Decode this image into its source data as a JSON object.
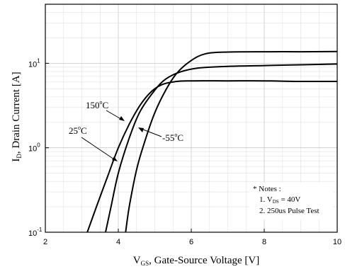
{
  "chart_data": {
    "type": "line",
    "title": "",
    "xlabel": {
      "main": "V",
      "sub": "GS",
      "rest": ", Gate-Source Voltage [V]"
    },
    "ylabel": {
      "main": "I",
      "sub": "D",
      "rest": ", Drain Current [A]"
    },
    "xlim": [
      2,
      10
    ],
    "ylim": [
      0.1,
      50
    ],
    "yscale": "log",
    "grid": true,
    "x_ticks": [
      2,
      4,
      6,
      8,
      10
    ],
    "x_tick_labels": [
      "2",
      "4",
      "6",
      "8",
      "10"
    ],
    "y_ticks": [
      0.1,
      1,
      10
    ],
    "y_tick_labels": [
      {
        "base": "10",
        "exp": "-1"
      },
      {
        "base": "10",
        "exp": "0"
      },
      {
        "base": "10",
        "exp": "1"
      }
    ],
    "series": [
      {
        "name": "150°C",
        "points": [
          [
            3.15,
            0.1
          ],
          [
            3.4,
            0.2
          ],
          [
            3.7,
            0.45
          ],
          [
            4.0,
            1.0
          ],
          [
            4.3,
            1.9
          ],
          [
            4.6,
            3.2
          ],
          [
            4.9,
            4.6
          ],
          [
            5.2,
            5.6
          ],
          [
            5.6,
            6.1
          ],
          [
            6.0,
            6.2
          ],
          [
            7.0,
            6.2
          ],
          [
            8.0,
            6.2
          ],
          [
            9.0,
            6.1
          ],
          [
            10,
            6.1
          ]
        ]
      },
      {
        "name": "25°C",
        "points": [
          [
            3.65,
            0.1
          ],
          [
            3.8,
            0.2
          ],
          [
            4.0,
            0.5
          ],
          [
            4.3,
            1.3
          ],
          [
            4.6,
            2.7
          ],
          [
            5.0,
            4.8
          ],
          [
            5.3,
            6.5
          ],
          [
            5.7,
            7.9
          ],
          [
            6.2,
            8.8
          ],
          [
            7.0,
            9.2
          ],
          [
            8.0,
            9.4
          ],
          [
            9.0,
            9.6
          ],
          [
            10,
            9.8
          ]
        ]
      },
      {
        "name": "-55°C",
        "points": [
          [
            4.2,
            0.1
          ],
          [
            4.3,
            0.2
          ],
          [
            4.5,
            0.55
          ],
          [
            4.7,
            1.1
          ],
          [
            5.0,
            2.6
          ],
          [
            5.3,
            4.8
          ],
          [
            5.6,
            7.6
          ],
          [
            6.0,
            10.8
          ],
          [
            6.4,
            13.0
          ],
          [
            7.0,
            13.6
          ],
          [
            8.0,
            13.7
          ],
          [
            9.0,
            13.7
          ],
          [
            10,
            13.8
          ]
        ]
      }
    ],
    "annotations": [
      {
        "series": "150°C",
        "text": "150",
        "unit": "C"
      },
      {
        "series": "25°C",
        "text": "25",
        "unit": "C"
      },
      {
        "series": "-55°C",
        "text": "-55",
        "unit": "C"
      }
    ],
    "notes": {
      "heading": "* Notes :",
      "line1_prefix": "1. V",
      "line1_sub": "DS",
      "line1_suffix": " = 40V",
      "line2": "2. 250us Pulse Test"
    }
  }
}
